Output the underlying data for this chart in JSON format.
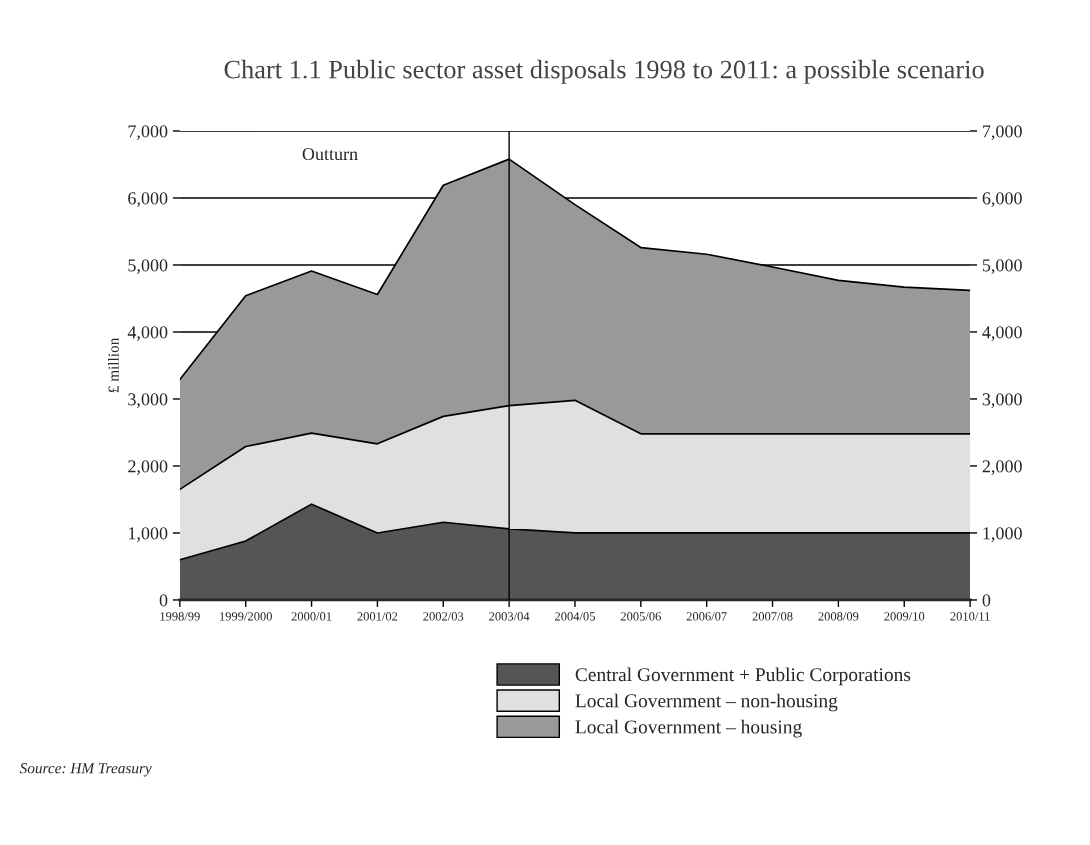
{
  "chart_data": {
    "type": "area",
    "stacked": true,
    "title": "Chart 1.1 Public sector asset disposals 1998 to 2011: a possible scenario",
    "ylabel": "£ million",
    "categories": [
      "1998/99",
      "1999/2000",
      "2000/01",
      "2001/02",
      "2002/03",
      "2003/04",
      "2004/05",
      "2005/06",
      "2006/07",
      "2007/08",
      "2008/09",
      "2009/10",
      "2010/11"
    ],
    "series": [
      {
        "name": "Central Government + Public Corporations",
        "color": "#555555",
        "values": [
          600,
          880,
          1430,
          1000,
          1160,
          1060,
          1000,
          1000,
          1000,
          1000,
          1000,
          1000,
          1000
        ]
      },
      {
        "name": "Local Government – non-housing",
        "color": "#e0e0e0",
        "values": [
          1050,
          1410,
          1060,
          1330,
          1580,
          1840,
          1980,
          1480,
          1480,
          1480,
          1480,
          1480,
          1480
        ]
      },
      {
        "name": "Local Government – housing",
        "color": "#999999",
        "values": [
          1640,
          2250,
          2420,
          2230,
          3450,
          3680,
          2920,
          2780,
          2680,
          2490,
          2290,
          2190,
          2140
        ]
      }
    ],
    "ylim": [
      0,
      7000
    ],
    "yticks": [
      {
        "value": 0,
        "label": "0"
      },
      {
        "value": 1000,
        "label": "1,000"
      },
      {
        "value": 2000,
        "label": "2,000"
      },
      {
        "value": 3000,
        "label": "3,000"
      },
      {
        "value": 4000,
        "label": "4,000"
      },
      {
        "value": 5000,
        "label": "5,000"
      },
      {
        "value": 6000,
        "label": "6,000"
      },
      {
        "value": 7000,
        "label": "7,000"
      }
    ],
    "y2lim": [
      0,
      7000
    ],
    "y2ticks": [
      {
        "value": 0,
        "label": "0"
      },
      {
        "value": 1000,
        "label": "1,000"
      },
      {
        "value": 2000,
        "label": "2,000"
      },
      {
        "value": 3000,
        "label": "3,000"
      },
      {
        "value": 4000,
        "label": "4,000"
      },
      {
        "value": 5000,
        "label": "5,000"
      },
      {
        "value": 6000,
        "label": "6,000"
      },
      {
        "value": 7000,
        "label": "7,000"
      }
    ],
    "ref_lines": [
      {
        "axis": "x",
        "value": "2003/04",
        "color": "#000000"
      }
    ],
    "grid": "y",
    "legend": "bottom",
    "annotations": [
      "Outturn",
      "Source: HM Treasury"
    ]
  }
}
